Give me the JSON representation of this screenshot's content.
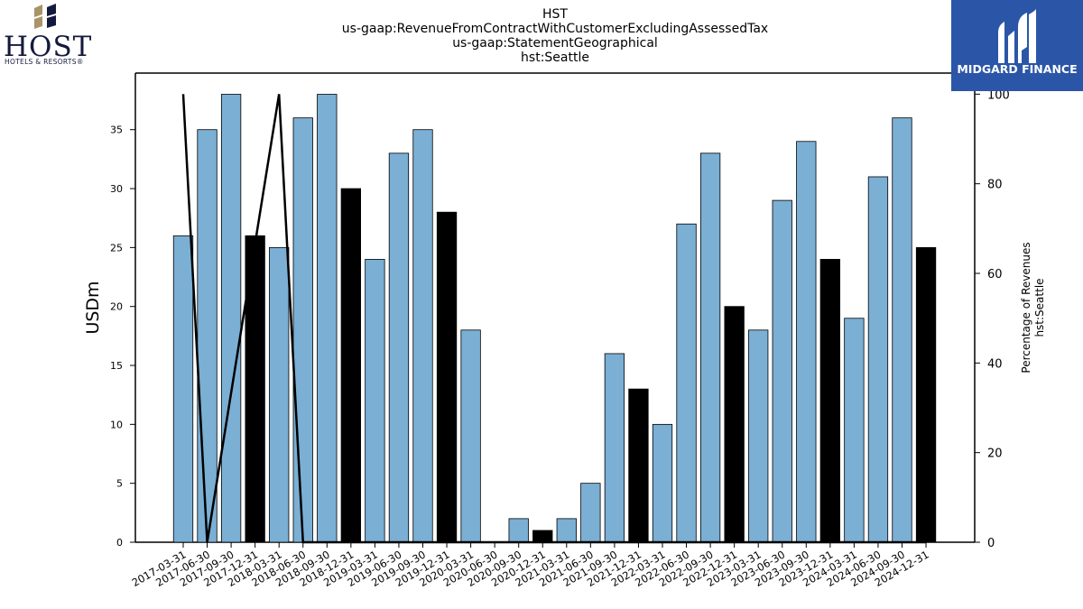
{
  "title_lines": [
    "HST",
    "us-gaap:RevenueFromContractWithCustomerExcludingAssessedTax",
    "us-gaap:StatementGeographical",
    "hst:Seattle"
  ],
  "logos": {
    "left": {
      "name": "HOST",
      "tagline": "HOTELS & RESORTS®"
    },
    "right": {
      "name": "MIDGARD FINANCE",
      "colors": {
        "background": "#2b56a8",
        "text": "#ffffff"
      }
    }
  },
  "chart_data": {
    "type": "bar",
    "categories": [
      "2017-03-31",
      "2017-06-30",
      "2017-09-30",
      "2017-12-31",
      "2018-03-31",
      "2018-06-30",
      "2018-09-30",
      "2018-12-31",
      "2019-03-31",
      "2019-06-30",
      "2019-09-30",
      "2019-12-31",
      "2020-03-31",
      "2020-06-30",
      "2020-09-30",
      "2020-12-31",
      "2021-03-31",
      "2021-06-30",
      "2021-09-30",
      "2021-12-31",
      "2022-03-31",
      "2022-06-30",
      "2022-09-30",
      "2022-12-31",
      "2023-03-31",
      "2023-06-30",
      "2023-09-30",
      "2023-12-31",
      "2024-03-31",
      "2024-06-30",
      "2024-09-30",
      "2024-12-31"
    ],
    "values": [
      26,
      35,
      38,
      26,
      25,
      36,
      38,
      30,
      24,
      33,
      35,
      28,
      18,
      0,
      2,
      1,
      2,
      5,
      16,
      13,
      10,
      27,
      33,
      20,
      18,
      29,
      34,
      24,
      19,
      31,
      36,
      25
    ],
    "highlight": [
      false,
      false,
      false,
      true,
      false,
      false,
      false,
      true,
      false,
      false,
      false,
      true,
      false,
      false,
      false,
      true,
      false,
      false,
      false,
      true,
      false,
      false,
      false,
      true,
      false,
      false,
      false,
      true,
      false,
      false,
      false,
      true
    ],
    "line": {
      "axis": "right",
      "points": [
        [
          "2017-03-31",
          100
        ],
        [
          "2017-06-30",
          0
        ],
        [
          "2018-03-31",
          100
        ],
        [
          "2018-06-30",
          0
        ],
        [
          "2018-09-30",
          0
        ],
        [
          "2018-12-31",
          0
        ],
        [
          "2019-03-31",
          0
        ],
        [
          "2019-06-30",
          0
        ],
        [
          "2019-09-30",
          0
        ],
        [
          "2019-12-31",
          0
        ],
        [
          "2020-03-31",
          0
        ],
        [
          "2020-06-30",
          0
        ],
        [
          "2020-09-30",
          0
        ],
        [
          "2020-12-31",
          0
        ],
        [
          "2021-03-31",
          0
        ],
        [
          "2021-06-30",
          0
        ],
        [
          "2021-09-30",
          0
        ],
        [
          "2021-12-31",
          0
        ],
        [
          "2022-03-31",
          0
        ],
        [
          "2022-06-30",
          0
        ],
        [
          "2022-09-30",
          0
        ],
        [
          "2022-12-31",
          0
        ],
        [
          "2023-03-31",
          0
        ],
        [
          "2023-06-30",
          0
        ],
        [
          "2023-09-30",
          0
        ],
        [
          "2023-12-31",
          0
        ],
        [
          "2024-03-31",
          0
        ],
        [
          "2024-06-30",
          0
        ],
        [
          "2024-09-30",
          0
        ],
        [
          "2024-12-31",
          0
        ]
      ],
      "color": "#000000"
    },
    "ylabel": "USDm",
    "ylim": [
      0,
      39.8
    ],
    "yticks": [
      0,
      5,
      10,
      15,
      20,
      25,
      30,
      35
    ],
    "y2label": [
      "Percentage of Revenues",
      "hst:Seattle"
    ],
    "y2lim": [
      0,
      104.7
    ],
    "y2ticks": [
      0,
      20,
      40,
      60,
      80,
      100
    ],
    "colors": {
      "bar": "#7bafd4",
      "bar_highlight": "#000000",
      "edge": "#000000"
    },
    "grid": false,
    "legend": "none"
  }
}
